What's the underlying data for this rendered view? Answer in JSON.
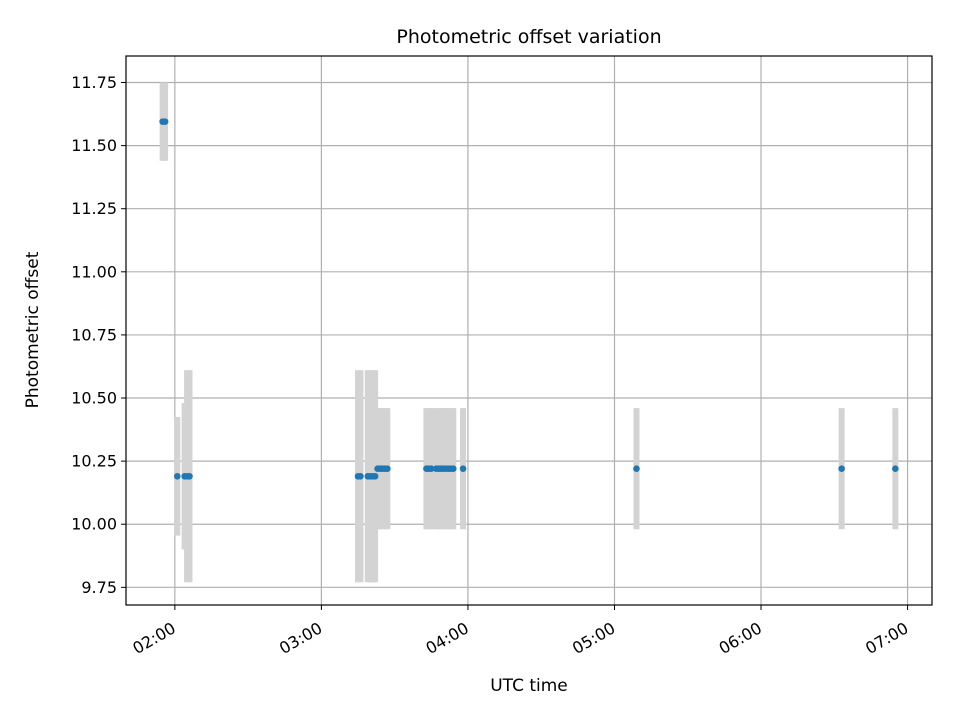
{
  "chart_data": {
    "type": "scatter",
    "title": "Photometric offset variation",
    "xlabel": "UTC time",
    "ylabel": "Photometric offset",
    "x_unit": "UTC time (HH:MM)",
    "xlim": [
      "01:40",
      "07:10"
    ],
    "ylim": [
      9.68,
      11.855
    ],
    "xticks": [
      "02:00",
      "03:00",
      "04:00",
      "05:00",
      "06:00",
      "07:00"
    ],
    "yticks": [
      9.75,
      10.0,
      10.25,
      10.5,
      10.75,
      11.0,
      11.25,
      11.5,
      11.75
    ],
    "ytick_labels": [
      "9.75",
      "10.00",
      "10.25",
      "10.50",
      "10.75",
      "11.00",
      "11.25",
      "11.50",
      "11.75"
    ],
    "grid": true,
    "error_bars": true,
    "points": [
      {
        "x": "01:55",
        "y": 11.595,
        "err": 0.155
      },
      {
        "x": "01:56",
        "y": 11.595,
        "err": 0.155
      },
      {
        "x": "02:01",
        "y": 10.19,
        "err": 0.235
      },
      {
        "x": "02:04",
        "y": 10.19,
        "err": 0.29
      },
      {
        "x": "02:05",
        "y": 10.19,
        "err": 0.42
      },
      {
        "x": "02:06",
        "y": 10.19,
        "err": 0.42
      },
      {
        "x": "03:15",
        "y": 10.19,
        "err": 0.42
      },
      {
        "x": "03:16",
        "y": 10.19,
        "err": 0.42
      },
      {
        "x": "03:19",
        "y": 10.19,
        "err": 0.42
      },
      {
        "x": "03:20",
        "y": 10.19,
        "err": 0.42
      },
      {
        "x": "03:21",
        "y": 10.19,
        "err": 0.42
      },
      {
        "x": "03:22",
        "y": 10.19,
        "err": 0.42
      },
      {
        "x": "03:23",
        "y": 10.22,
        "err": 0.24
      },
      {
        "x": "03:24",
        "y": 10.22,
        "err": 0.24
      },
      {
        "x": "03:25",
        "y": 10.22,
        "err": 0.24
      },
      {
        "x": "03:26",
        "y": 10.22,
        "err": 0.24
      },
      {
        "x": "03:27",
        "y": 10.22,
        "err": 0.24
      },
      {
        "x": "03:43",
        "y": 10.22,
        "err": 0.24
      },
      {
        "x": "03:44",
        "y": 10.22,
        "err": 0.24
      },
      {
        "x": "03:45",
        "y": 10.22,
        "err": 0.24
      },
      {
        "x": "03:47",
        "y": 10.22,
        "err": 0.24
      },
      {
        "x": "03:48",
        "y": 10.22,
        "err": 0.24
      },
      {
        "x": "03:49",
        "y": 10.22,
        "err": 0.24
      },
      {
        "x": "03:50",
        "y": 10.22,
        "err": 0.24
      },
      {
        "x": "03:51",
        "y": 10.22,
        "err": 0.24
      },
      {
        "x": "03:52",
        "y": 10.22,
        "err": 0.24
      },
      {
        "x": "03:53",
        "y": 10.22,
        "err": 0.24
      },
      {
        "x": "03:54",
        "y": 10.22,
        "err": 0.24
      },
      {
        "x": "03:58",
        "y": 10.22,
        "err": 0.24
      },
      {
        "x": "05:09",
        "y": 10.22,
        "err": 0.24
      },
      {
        "x": "06:33",
        "y": 10.22,
        "err": 0.24
      },
      {
        "x": "06:55",
        "y": 10.22,
        "err": 0.24
      }
    ],
    "colors": {
      "marker": "#1f77b4",
      "error_bar": "#d3d3d3",
      "grid": "#b0b0b0",
      "axes": "#000000"
    }
  }
}
